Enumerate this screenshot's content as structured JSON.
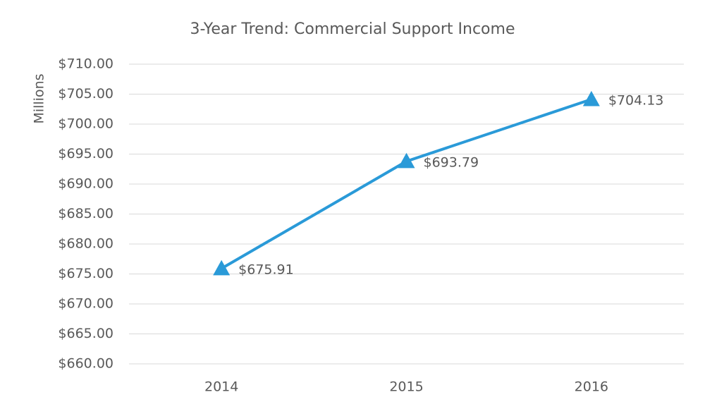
{
  "chart_data": {
    "type": "line",
    "title": "3-Year Trend:  Commercial Support Income",
    "y_label": "Millions",
    "categories": [
      "2014",
      "2015",
      "2016"
    ],
    "values": [
      675.91,
      693.79,
      704.13
    ],
    "value_labels": [
      "$675.91",
      "$693.79",
      "$704.13"
    ],
    "color": "#2a9ad8",
    "ylim": [
      660,
      710
    ],
    "yticks": [
      {
        "value": 660,
        "label": "$660.00"
      },
      {
        "value": 665,
        "label": "$665.00"
      },
      {
        "value": 670,
        "label": "$670.00"
      },
      {
        "value": 675,
        "label": "$675.00"
      },
      {
        "value": 680,
        "label": "$680.00"
      },
      {
        "value": 685,
        "label": "$685.00"
      },
      {
        "value": 690,
        "label": "$690.00"
      },
      {
        "value": 695,
        "label": "$695.00"
      },
      {
        "value": 700,
        "label": "$700.00"
      },
      {
        "value": 705,
        "label": "$705.00"
      },
      {
        "value": 710,
        "label": "$710.00"
      }
    ],
    "grid": true
  }
}
